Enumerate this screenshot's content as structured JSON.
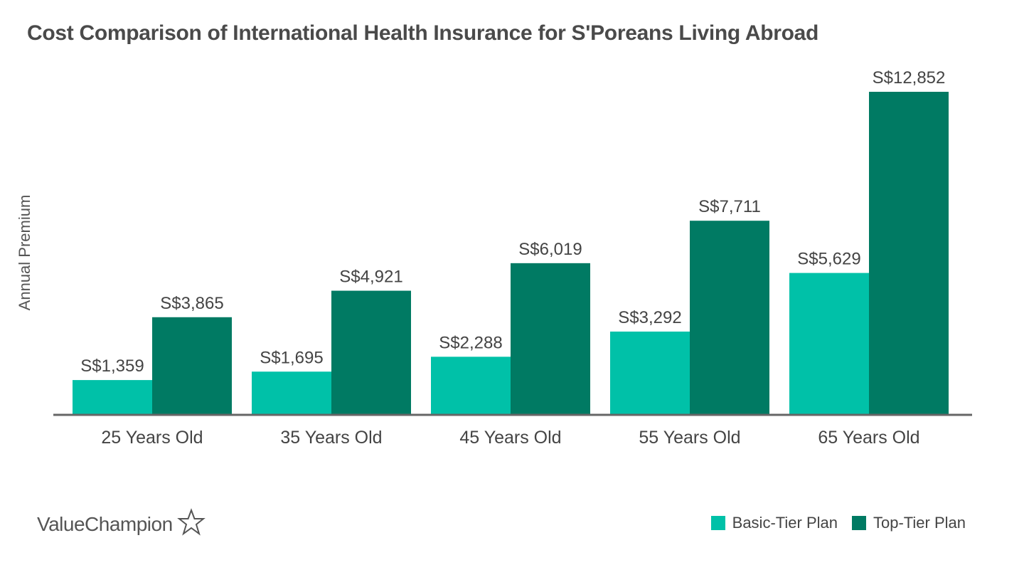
{
  "chart_data": {
    "type": "bar",
    "title": "Cost Comparison of International Health Insurance for S'Poreans Living Abroad",
    "xlabel": "",
    "ylabel": "Annual Premium",
    "categories": [
      "25 Years Old",
      "35 Years Old",
      "45 Years Old",
      "55 Years Old",
      "65 Years Old"
    ],
    "series": [
      {
        "name": "Basic-Tier Plan",
        "color": "#00c1a8",
        "values": [
          1359,
          1695,
          2288,
          3292,
          5629
        ],
        "labels": [
          "S$1,359",
          "S$1,695",
          "S$2,288",
          "S$3,292",
          "S$5,629"
        ]
      },
      {
        "name": "Top-Tier Plan",
        "color": "#007a63",
        "values": [
          3865,
          4921,
          6019,
          7711,
          12852
        ],
        "labels": [
          "S$3,865",
          "S$4,921",
          "S$6,019",
          "S$7,711",
          "S$12,852"
        ]
      }
    ],
    "ylim": [
      0,
      12852
    ],
    "grid": false,
    "legend_position": "bottom-right"
  },
  "brand": {
    "name": "ValueChampion",
    "icon": "star-outline-icon"
  }
}
